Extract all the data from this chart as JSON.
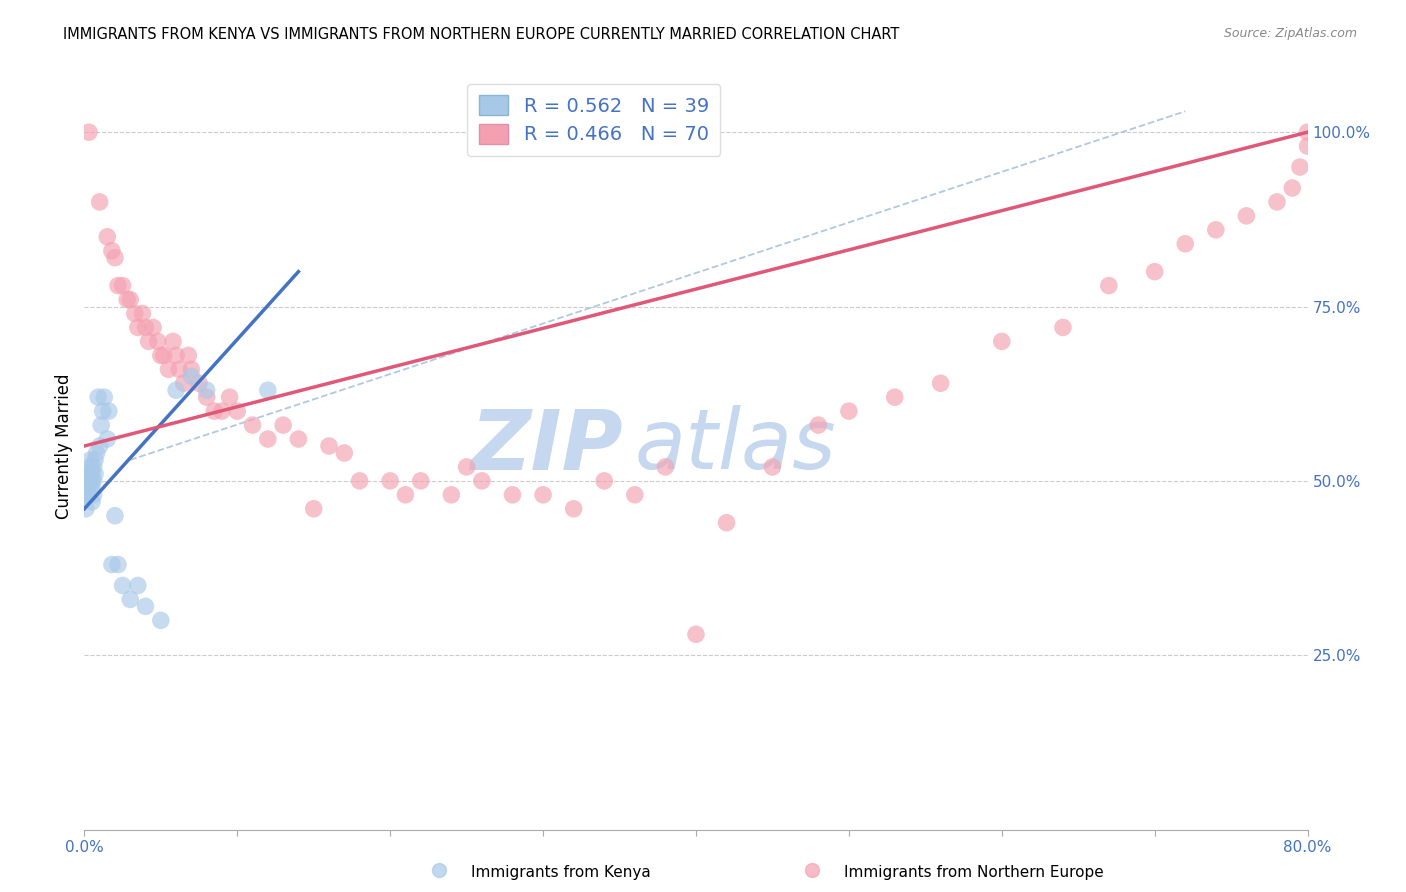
{
  "title": "IMMIGRANTS FROM KENYA VS IMMIGRANTS FROM NORTHERN EUROPE CURRENTLY MARRIED CORRELATION CHART",
  "source": "Source: ZipAtlas.com",
  "ylabel": "Currently Married",
  "kenya_R": 0.562,
  "kenya_N": 39,
  "northern_R": 0.466,
  "northern_N": 70,
  "kenya_color": "#a8c8e8",
  "northern_color": "#f4a0b0",
  "kenya_line_color": "#4472c4",
  "northern_line_color": "#e05878",
  "dashed_line_color": "#b0c8e0",
  "kenya_x": [
    0.001,
    0.001,
    0.002,
    0.002,
    0.003,
    0.003,
    0.003,
    0.004,
    0.004,
    0.004,
    0.005,
    0.005,
    0.005,
    0.005,
    0.006,
    0.006,
    0.006,
    0.007,
    0.007,
    0.008,
    0.009,
    0.01,
    0.011,
    0.012,
    0.013,
    0.015,
    0.016,
    0.018,
    0.02,
    0.022,
    0.025,
    0.03,
    0.035,
    0.04,
    0.05,
    0.06,
    0.07,
    0.08,
    0.12
  ],
  "kenya_y": [
    0.48,
    0.46,
    0.5,
    0.49,
    0.51,
    0.5,
    0.48,
    0.52,
    0.51,
    0.53,
    0.49,
    0.51,
    0.5,
    0.47,
    0.52,
    0.5,
    0.48,
    0.53,
    0.51,
    0.54,
    0.62,
    0.55,
    0.58,
    0.6,
    0.62,
    0.56,
    0.6,
    0.38,
    0.45,
    0.38,
    0.35,
    0.33,
    0.35,
    0.32,
    0.3,
    0.63,
    0.65,
    0.63,
    0.63
  ],
  "northern_x": [
    0.003,
    0.01,
    0.015,
    0.018,
    0.02,
    0.022,
    0.025,
    0.028,
    0.03,
    0.033,
    0.035,
    0.038,
    0.04,
    0.042,
    0.045,
    0.048,
    0.05,
    0.052,
    0.055,
    0.058,
    0.06,
    0.062,
    0.065,
    0.068,
    0.07,
    0.075,
    0.08,
    0.085,
    0.09,
    0.095,
    0.1,
    0.11,
    0.12,
    0.13,
    0.14,
    0.15,
    0.16,
    0.17,
    0.18,
    0.2,
    0.21,
    0.22,
    0.24,
    0.25,
    0.26,
    0.28,
    0.3,
    0.32,
    0.34,
    0.36,
    0.38,
    0.4,
    0.42,
    0.45,
    0.48,
    0.5,
    0.53,
    0.56,
    0.6,
    0.64,
    0.67,
    0.7,
    0.72,
    0.74,
    0.76,
    0.78,
    0.79,
    0.795,
    0.8,
    0.8
  ],
  "northern_y": [
    1.0,
    0.9,
    0.85,
    0.83,
    0.82,
    0.78,
    0.78,
    0.76,
    0.76,
    0.74,
    0.72,
    0.74,
    0.72,
    0.7,
    0.72,
    0.7,
    0.68,
    0.68,
    0.66,
    0.7,
    0.68,
    0.66,
    0.64,
    0.68,
    0.66,
    0.64,
    0.62,
    0.6,
    0.6,
    0.62,
    0.6,
    0.58,
    0.56,
    0.58,
    0.56,
    0.46,
    0.55,
    0.54,
    0.5,
    0.5,
    0.48,
    0.5,
    0.48,
    0.52,
    0.5,
    0.48,
    0.48,
    0.46,
    0.5,
    0.48,
    0.52,
    0.28,
    0.44,
    0.52,
    0.58,
    0.6,
    0.62,
    0.64,
    0.7,
    0.72,
    0.78,
    0.8,
    0.84,
    0.86,
    0.88,
    0.9,
    0.92,
    0.95,
    0.98,
    1.0
  ],
  "xlim": [
    0.0,
    0.8
  ],
  "ylim": [
    0.0,
    1.1
  ],
  "yticks": [
    0.25,
    0.5,
    0.75,
    1.0
  ],
  "ytick_labels": [
    "25.0%",
    "50.0%",
    "75.0%",
    "100.0%"
  ],
  "xtick_labels": [
    "0.0%",
    "",
    "",
    "",
    "",
    "",
    "",
    "",
    "80.0%"
  ]
}
